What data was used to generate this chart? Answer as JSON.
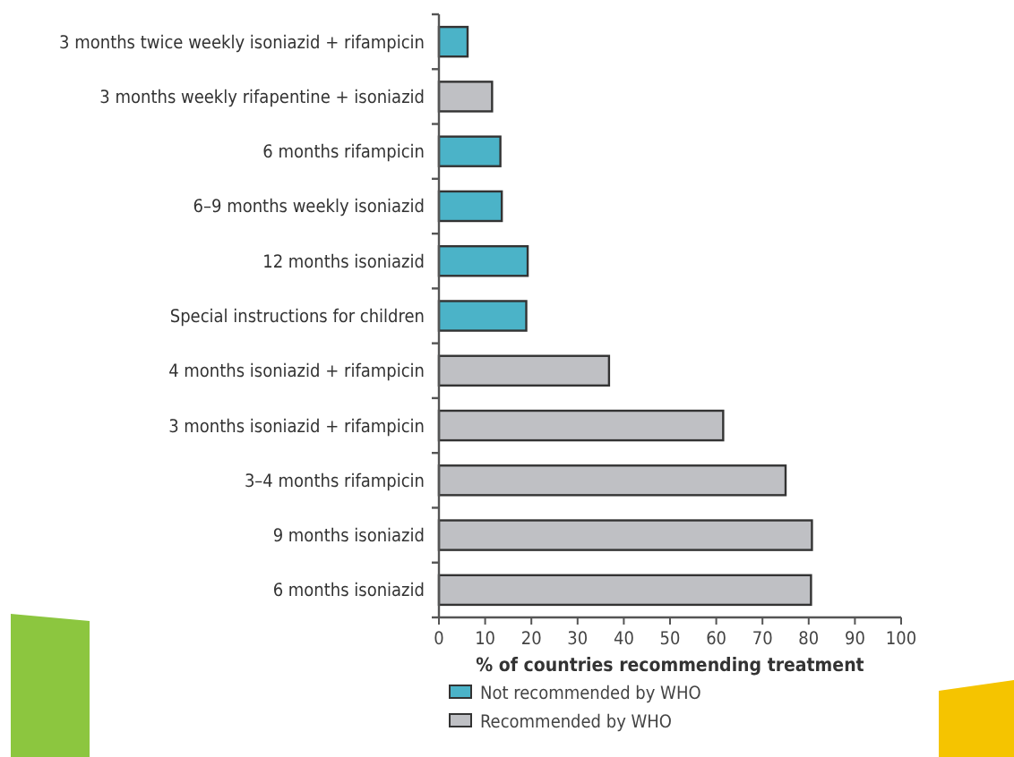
{
  "chart_data": {
    "type": "bar",
    "orientation": "horizontal",
    "stacked": true,
    "categories": [
      "3 months twice weekly isoniazid + rifampicin",
      "3 months weekly rifapentine + isoniazid",
      "6 months rifampicin",
      "6–9 months weekly isoniazid",
      "12 months isoniazid",
      "Special instructions for children",
      "4 months isoniazid + rifampicin",
      "3 months isoniazid  + rifampicin",
      "3–4 months rifampicin",
      "9 months isoniazid",
      "6 months isoniazid"
    ],
    "series": [
      {
        "name": "Not recommended by WHO",
        "color": "#4bb3c8",
        "values": [
          6.2,
          null,
          13.3,
          13.6,
          19.2,
          18.9,
          null,
          null,
          null,
          null,
          null
        ]
      },
      {
        "name": "Recommended by WHO",
        "color": "#bfc0c4",
        "values": [
          null,
          11.5,
          null,
          null,
          null,
          null,
          36.8,
          61.5,
          75,
          80.7,
          80.5
        ]
      }
    ],
    "xlim": [
      0,
      100
    ],
    "xticks": [
      0,
      10,
      20,
      30,
      40,
      50,
      60,
      70,
      80,
      90,
      100
    ],
    "xlabel": "% of countries recommending treatment",
    "legend": "bottom",
    "grid": false
  }
}
